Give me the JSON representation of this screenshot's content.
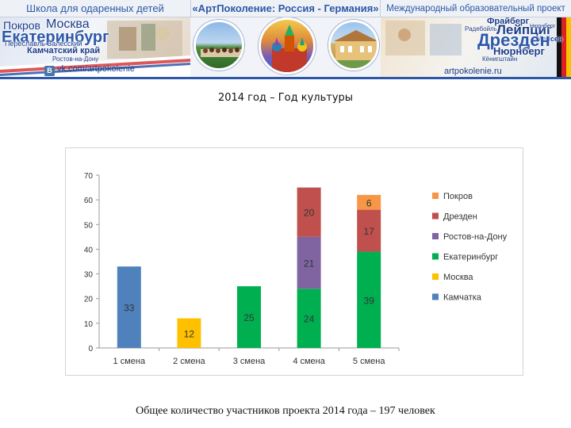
{
  "header": {
    "left": {
      "title": "Школа для одаренных детей",
      "cities": [
        "Покров",
        "Москва",
        "Екатеринбург",
        "Переславль-Залесский",
        "Камчатский край",
        "Ростов-на-Дону"
      ],
      "url": "vk.com/artpokolenie",
      "url_icon": "vk-icon"
    },
    "center": {
      "title": "«АртПоколение: Россия - Германия»"
    },
    "right": {
      "title": "Международный образовательный проект",
      "cities": [
        "Фрайберг",
        "Радебойль",
        "Лейпциг",
        "Мейсен",
        "Нюрнберг",
        "Дрезден",
        "Нюрнберг",
        "Кёнигштайн"
      ],
      "url": "artpokolenie.ru"
    },
    "colors": {
      "brand_blue": "#2d58a8",
      "dark_blue": "#1d3d8a"
    }
  },
  "page_title": "2014 год – Год культуры",
  "chart_data": {
    "type": "bar",
    "stacked": true,
    "categories": [
      "1 смена",
      "2 смена",
      "3 смена",
      "4 смена",
      "5 смена"
    ],
    "series": [
      {
        "name": "Камчатка",
        "color": "#4f81bd",
        "values": [
          33,
          0,
          0,
          0,
          0
        ]
      },
      {
        "name": "Москва",
        "color": "#ffc000",
        "values": [
          0,
          12,
          0,
          0,
          0
        ]
      },
      {
        "name": "Екатеринбург",
        "color": "#00b050",
        "values": [
          0,
          0,
          25,
          24,
          39
        ]
      },
      {
        "name": "Ростов-на-Дону",
        "color": "#8064a2",
        "values": [
          0,
          0,
          0,
          21,
          0
        ]
      },
      {
        "name": "Дрезден",
        "color": "#c0504d",
        "values": [
          0,
          0,
          0,
          20,
          17
        ]
      },
      {
        "name": "Покров",
        "color": "#f79646",
        "values": [
          0,
          0,
          0,
          0,
          6
        ]
      }
    ],
    "legend_order": [
      "Покров",
      "Дрезден",
      "Ростов-на-Дону",
      "Екатеринбург",
      "Москва",
      "Камчатка"
    ],
    "ylim": [
      0,
      70
    ],
    "yticks": [
      0,
      10,
      20,
      30,
      40,
      50,
      60,
      70
    ],
    "legend_position": "right",
    "grid": false,
    "title": "",
    "xlabel": "",
    "ylabel": ""
  },
  "footer_text": "Общее количество участников проекта 2014 года – 197 человек"
}
